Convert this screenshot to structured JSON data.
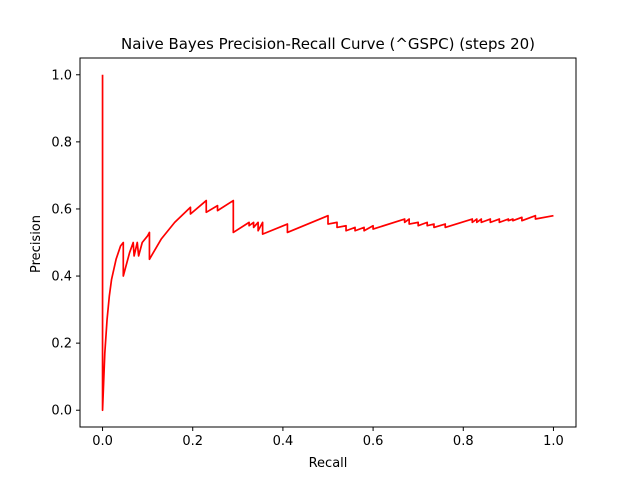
{
  "chart_data": {
    "type": "line",
    "title": "Naive Bayes Precision-Recall Curve (^GSPC) (steps 20)",
    "xlabel": "Recall",
    "ylabel": "Precision",
    "xlim": [
      -0.05,
      1.05
    ],
    "ylim": [
      -0.05,
      1.05
    ],
    "xticks": [
      0.0,
      0.2,
      0.4,
      0.6,
      0.8,
      1.0
    ],
    "yticks": [
      0.0,
      0.2,
      0.4,
      0.6,
      0.8,
      1.0
    ],
    "xtick_labels": [
      "0.0",
      "0.2",
      "0.4",
      "0.6",
      "0.8",
      "1.0"
    ],
    "ytick_labels": [
      "0.0",
      "0.2",
      "0.4",
      "0.6",
      "0.8",
      "1.0"
    ],
    "grid": false,
    "series": [
      {
        "color": "#ff0000",
        "x": [
          0.0,
          0.0,
          0.0,
          0.005,
          0.01,
          0.015,
          0.02,
          0.03,
          0.04,
          0.046,
          0.046,
          0.06,
          0.068,
          0.07,
          0.077,
          0.08,
          0.088,
          0.1,
          0.104,
          0.104,
          0.13,
          0.16,
          0.195,
          0.195,
          0.23,
          0.23,
          0.255,
          0.255,
          0.29,
          0.29,
          0.325,
          0.325,
          0.335,
          0.335,
          0.345,
          0.345,
          0.355,
          0.355,
          0.41,
          0.41,
          0.5,
          0.5,
          0.52,
          0.52,
          0.54,
          0.54,
          0.56,
          0.56,
          0.58,
          0.58,
          0.6,
          0.6,
          0.67,
          0.67,
          0.68,
          0.68,
          0.7,
          0.7,
          0.72,
          0.72,
          0.735,
          0.735,
          0.76,
          0.76,
          0.82,
          0.82,
          0.83,
          0.83,
          0.84,
          0.84,
          0.86,
          0.86,
          0.88,
          0.88,
          0.9,
          0.9,
          0.91,
          0.91,
          0.93,
          0.93,
          0.96,
          0.96,
          1.0
        ],
        "y": [
          1.0,
          0.0,
          0.0,
          0.17,
          0.27,
          0.34,
          0.39,
          0.45,
          0.49,
          0.5,
          0.4,
          0.47,
          0.5,
          0.46,
          0.5,
          0.46,
          0.5,
          0.52,
          0.53,
          0.45,
          0.51,
          0.56,
          0.605,
          0.585,
          0.625,
          0.59,
          0.61,
          0.595,
          0.625,
          0.53,
          0.56,
          0.55,
          0.56,
          0.545,
          0.56,
          0.535,
          0.56,
          0.525,
          0.555,
          0.53,
          0.58,
          0.555,
          0.56,
          0.545,
          0.55,
          0.535,
          0.545,
          0.535,
          0.545,
          0.535,
          0.55,
          0.54,
          0.57,
          0.56,
          0.57,
          0.555,
          0.56,
          0.55,
          0.56,
          0.55,
          0.555,
          0.545,
          0.555,
          0.545,
          0.57,
          0.56,
          0.57,
          0.56,
          0.57,
          0.56,
          0.57,
          0.56,
          0.57,
          0.56,
          0.57,
          0.565,
          0.57,
          0.565,
          0.575,
          0.565,
          0.58,
          0.57,
          0.58
        ]
      }
    ]
  }
}
